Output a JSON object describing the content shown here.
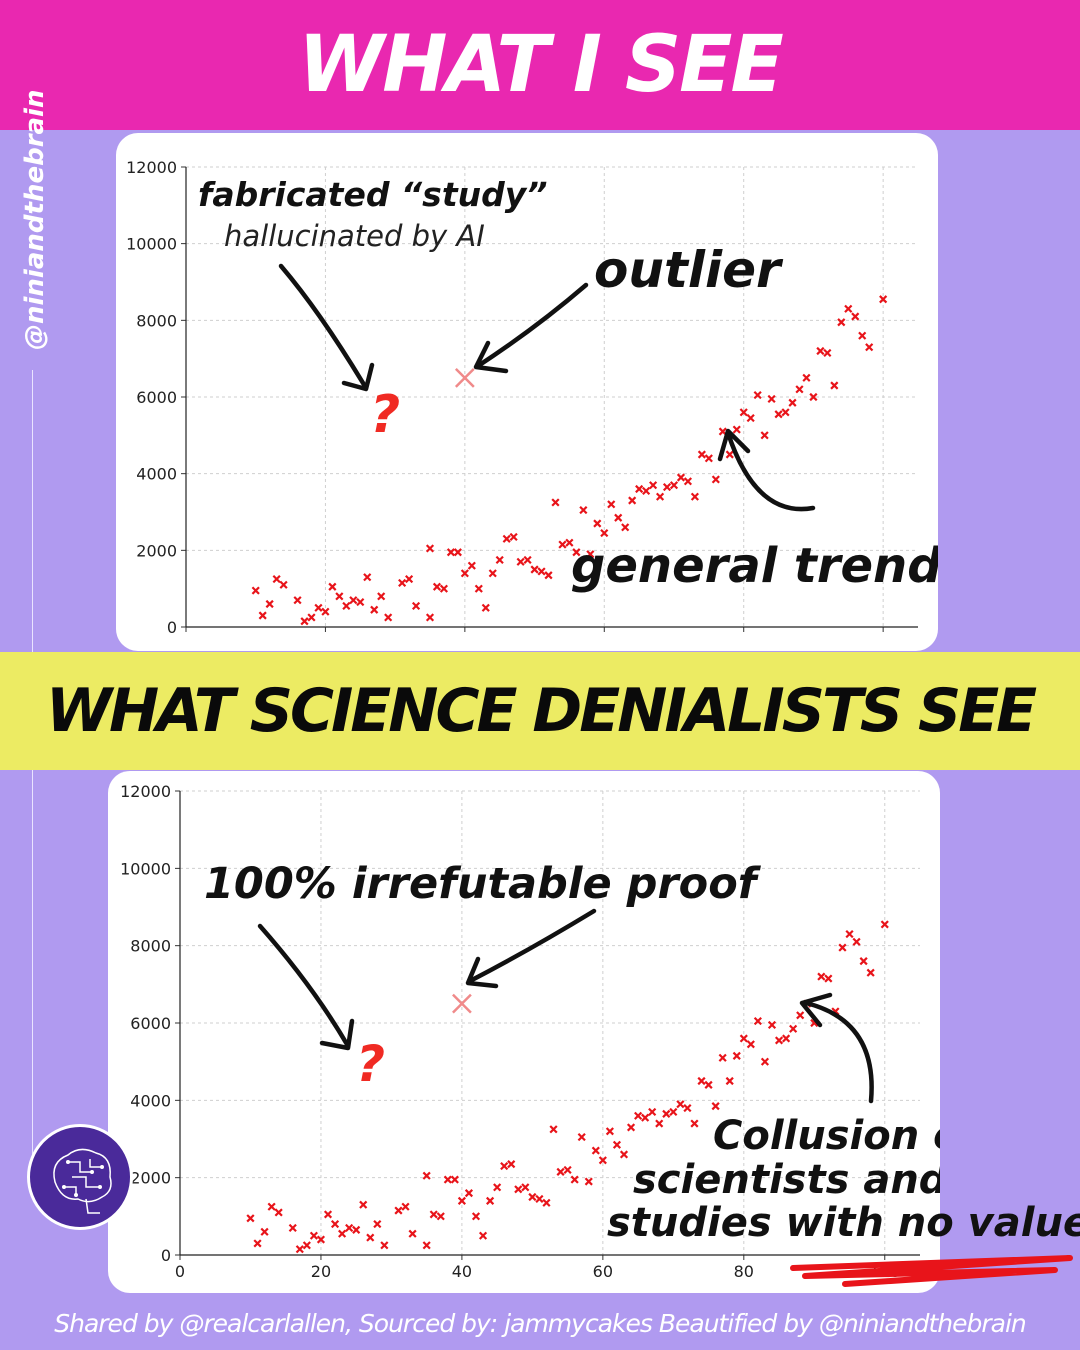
{
  "header": {
    "top_title": "WHAT I SEE",
    "mid_title": "WHAT SCIENCE DENIALISTS SEE"
  },
  "side_handle": "@niniandthebrain",
  "footer": "Shared by  @realcarlallen, Sourced by: jammycakes Beautified by @niniandthebrain",
  "annotations_top": {
    "fabricated": "fabricated “study”",
    "hallucinated": "hallucinated by AI",
    "outlier": "outlier",
    "trend": "general trend",
    "question": "?"
  },
  "annotations_bottom": {
    "proof": "100% irrefutable proof",
    "collusion_1": "Collusion of",
    "collusion_2": "scientists and paid",
    "collusion_3": "studies with no value",
    "question": "?"
  },
  "colors": {
    "top_band": "#e928b0",
    "mid_band": "#eceb63",
    "background": "#b09af0",
    "points": "#e8141a"
  },
  "chart_data": [
    {
      "type": "scatter",
      "xlim": [
        0,
        105
      ],
      "ylim": [
        0,
        12000
      ],
      "yticks": [
        "0",
        "2000",
        "4000",
        "6000",
        "8000",
        "10000",
        "12000"
      ],
      "xticks": [],
      "grid": true,
      "outlier": {
        "x": 40,
        "y": 6500
      },
      "points": [
        [
          10,
          950
        ],
        [
          11,
          300
        ],
        [
          12,
          600
        ],
        [
          13,
          1250
        ],
        [
          14,
          1100
        ],
        [
          16,
          700
        ],
        [
          17,
          150
        ],
        [
          18,
          250
        ],
        [
          19,
          500
        ],
        [
          20,
          400
        ],
        [
          21,
          1050
        ],
        [
          22,
          800
        ],
        [
          23,
          550
        ],
        [
          24,
          700
        ],
        [
          25,
          650
        ],
        [
          26,
          1300
        ],
        [
          27,
          450
        ],
        [
          28,
          800
        ],
        [
          29,
          250
        ],
        [
          31,
          1150
        ],
        [
          32,
          1250
        ],
        [
          33,
          550
        ],
        [
          35,
          250
        ],
        [
          36,
          1050
        ],
        [
          37,
          1000
        ],
        [
          35,
          2050
        ],
        [
          38,
          1950
        ],
        [
          39,
          1950
        ],
        [
          40,
          1400
        ],
        [
          41,
          1600
        ],
        [
          42,
          1000
        ],
        [
          43,
          500
        ],
        [
          44,
          1400
        ],
        [
          45,
          1750
        ],
        [
          46,
          2300
        ],
        [
          47,
          2350
        ],
        [
          48,
          1700
        ],
        [
          49,
          1750
        ],
        [
          50,
          1500
        ],
        [
          51,
          1450
        ],
        [
          52,
          1350
        ],
        [
          53,
          3250
        ],
        [
          54,
          2150
        ],
        [
          55,
          2200
        ],
        [
          56,
          1950
        ],
        [
          57,
          3050
        ],
        [
          58,
          1900
        ],
        [
          59,
          2700
        ],
        [
          60,
          2450
        ],
        [
          61,
          3200
        ],
        [
          62,
          2850
        ],
        [
          63,
          2600
        ],
        [
          64,
          3300
        ],
        [
          65,
          3600
        ],
        [
          66,
          3550
        ],
        [
          67,
          3700
        ],
        [
          68,
          3400
        ],
        [
          69,
          3650
        ],
        [
          70,
          3700
        ],
        [
          71,
          3900
        ],
        [
          72,
          3800
        ],
        [
          73,
          3400
        ],
        [
          74,
          4500
        ],
        [
          75,
          4400
        ],
        [
          76,
          3850
        ],
        [
          77,
          5100
        ],
        [
          78,
          4500
        ],
        [
          79,
          5150
        ],
        [
          80,
          5600
        ],
        [
          81,
          5450
        ],
        [
          82,
          6050
        ],
        [
          83,
          5000
        ],
        [
          84,
          5950
        ],
        [
          85,
          5550
        ],
        [
          86,
          5600
        ],
        [
          87,
          5850
        ],
        [
          88,
          6200
        ],
        [
          89,
          6500
        ],
        [
          90,
          6000
        ],
        [
          91,
          7200
        ],
        [
          92,
          7150
        ],
        [
          93,
          6300
        ],
        [
          94,
          7950
        ],
        [
          95,
          8300
        ],
        [
          96,
          8100
        ],
        [
          97,
          7600
        ],
        [
          98,
          7300
        ],
        [
          100,
          8550
        ]
      ]
    },
    {
      "type": "scatter",
      "xlim": [
        0,
        105
      ],
      "ylim": [
        0,
        12000
      ],
      "yticks": [
        "0",
        "2000",
        "4000",
        "6000",
        "8000",
        "10000",
        "12000"
      ],
      "xticks": [
        "0",
        "20",
        "40",
        "60",
        "80",
        "100"
      ],
      "grid": true,
      "outlier": {
        "x": 40,
        "y": 6500
      },
      "points": [
        [
          10,
          950
        ],
        [
          11,
          300
        ],
        [
          12,
          600
        ],
        [
          13,
          1250
        ],
        [
          14,
          1100
        ],
        [
          16,
          700
        ],
        [
          17,
          150
        ],
        [
          18,
          250
        ],
        [
          19,
          500
        ],
        [
          20,
          400
        ],
        [
          21,
          1050
        ],
        [
          22,
          800
        ],
        [
          23,
          550
        ],
        [
          24,
          700
        ],
        [
          25,
          650
        ],
        [
          26,
          1300
        ],
        [
          27,
          450
        ],
        [
          28,
          800
        ],
        [
          29,
          250
        ],
        [
          31,
          1150
        ],
        [
          32,
          1250
        ],
        [
          33,
          550
        ],
        [
          35,
          250
        ],
        [
          36,
          1050
        ],
        [
          37,
          1000
        ],
        [
          35,
          2050
        ],
        [
          38,
          1950
        ],
        [
          39,
          1950
        ],
        [
          40,
          1400
        ],
        [
          41,
          1600
        ],
        [
          42,
          1000
        ],
        [
          43,
          500
        ],
        [
          44,
          1400
        ],
        [
          45,
          1750
        ],
        [
          46,
          2300
        ],
        [
          47,
          2350
        ],
        [
          48,
          1700
        ],
        [
          49,
          1750
        ],
        [
          50,
          1500
        ],
        [
          51,
          1450
        ],
        [
          52,
          1350
        ],
        [
          53,
          3250
        ],
        [
          54,
          2150
        ],
        [
          55,
          2200
        ],
        [
          56,
          1950
        ],
        [
          57,
          3050
        ],
        [
          58,
          1900
        ],
        [
          59,
          2700
        ],
        [
          60,
          2450
        ],
        [
          61,
          3200
        ],
        [
          62,
          2850
        ],
        [
          63,
          2600
        ],
        [
          64,
          3300
        ],
        [
          65,
          3600
        ],
        [
          66,
          3550
        ],
        [
          67,
          3700
        ],
        [
          68,
          3400
        ],
        [
          69,
          3650
        ],
        [
          70,
          3700
        ],
        [
          71,
          3900
        ],
        [
          72,
          3800
        ],
        [
          73,
          3400
        ],
        [
          74,
          4500
        ],
        [
          75,
          4400
        ],
        [
          76,
          3850
        ],
        [
          77,
          5100
        ],
        [
          78,
          4500
        ],
        [
          79,
          5150
        ],
        [
          80,
          5600
        ],
        [
          81,
          5450
        ],
        [
          82,
          6050
        ],
        [
          83,
          5000
        ],
        [
          84,
          5950
        ],
        [
          85,
          5550
        ],
        [
          86,
          5600
        ],
        [
          87,
          5850
        ],
        [
          88,
          6200
        ],
        [
          89,
          6500
        ],
        [
          90,
          6000
        ],
        [
          91,
          7200
        ],
        [
          92,
          7150
        ],
        [
          93,
          6300
        ],
        [
          94,
          7950
        ],
        [
          95,
          8300
        ],
        [
          96,
          8100
        ],
        [
          97,
          7600
        ],
        [
          98,
          7300
        ],
        [
          100,
          8550
        ]
      ]
    }
  ]
}
